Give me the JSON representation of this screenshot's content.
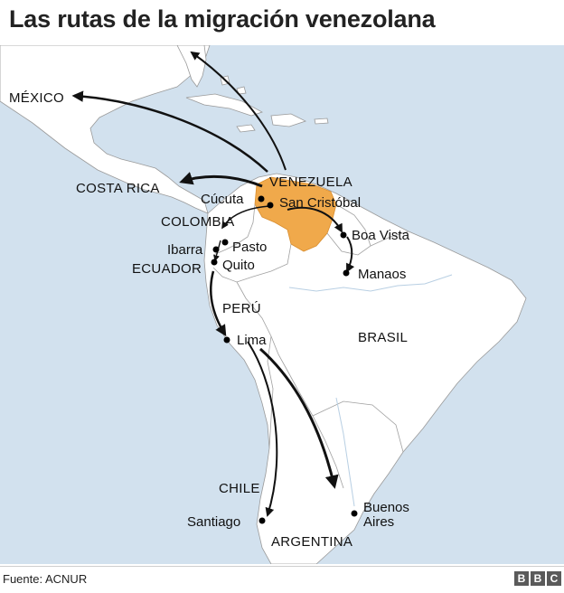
{
  "title": "Las rutas de la migración venezolana",
  "source": "Fuente: ACNUR",
  "logo": "BBC",
  "colors": {
    "sea": "#d2e1ee",
    "land": "#ffffff",
    "venezuela": "#f0a94b",
    "route": "#111111",
    "border": "#999999"
  },
  "countries": {
    "mexico": "MÉXICO",
    "costa_rica": "COSTA RICA",
    "venezuela": "VENEZUELA",
    "colombia": "COLOMBIA",
    "ecuador": "ECUADOR",
    "peru": "PERÚ",
    "brasil": "BRASIL",
    "chile": "CHILE",
    "argentina": "ARGENTINA"
  },
  "cities": {
    "cucuta": "Cúcuta",
    "san_cristobal": "San Cristóbal",
    "boa_vista": "Boa Vista",
    "manaos": "Manaos",
    "ibarra": "Ibarra",
    "pasto": "Pasto",
    "quito": "Quito",
    "lima": "Lima",
    "santiago": "Santiago",
    "buenos_aires_line1": "Buenos",
    "buenos_aires_line2": "Aires"
  },
  "routes": [
    {
      "from": "Venezuela",
      "to": "Estados Unidos"
    },
    {
      "from": "Venezuela",
      "to": "México"
    },
    {
      "from": "Venezuela",
      "to": "Costa Rica"
    },
    {
      "from": "San Cristóbal",
      "to": "Colombia"
    },
    {
      "from": "Venezuela",
      "to": "Boa Vista"
    },
    {
      "from": "Boa Vista",
      "to": "Manaos"
    },
    {
      "from": "Quito",
      "to": "Lima"
    },
    {
      "from": "Lima",
      "to": "Santiago"
    },
    {
      "from": "Lima",
      "to": "Argentina"
    }
  ]
}
